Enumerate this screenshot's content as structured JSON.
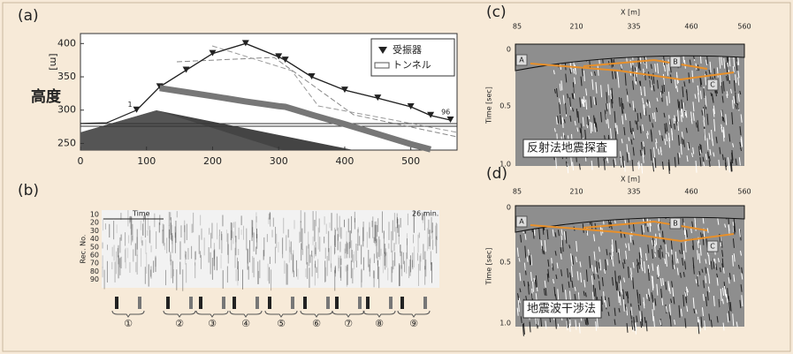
{
  "chart_data": {
    "type": "line",
    "label": "(a)",
    "y_label": "高度",
    "y_unit": "[m]",
    "x": [
      0,
      40,
      85,
      120,
      160,
      200,
      250,
      300,
      310,
      350,
      400,
      450,
      500,
      530,
      560
    ],
    "series": [
      {
        "color": "#222",
        "values": [
          280,
          281,
          300,
          335,
          360,
          385,
          400,
          380,
          375,
          350,
          330,
          318,
          305,
          292,
          285
        ]
      },
      {
        "name": "受振器",
        "color": "#222",
        "marker": "triangle-down",
        "values": [
          null,
          null,
          300,
          335,
          360,
          385,
          400,
          380,
          375,
          350,
          330,
          318,
          305,
          292,
          285
        ]
      },
      {
        "name": "トンネル",
        "color": "#777",
        "values": [
          null,
          null,
          null,
          333,
          327,
          321,
          313,
          306,
          305,
          293,
          279,
          264,
          249,
          241,
          null
        ]
      }
    ],
    "xlim": [
      0,
      570
    ],
    "ylim": [
      240,
      415
    ],
    "xticks": [
      0,
      100,
      200,
      300,
      400,
      500
    ],
    "yticks": [
      250,
      300,
      350,
      400
    ],
    "annotations": [
      "1",
      "96"
    ]
  },
  "panels": [
    {
      "label": "(b)",
      "time": "Time",
      "end": "26 min.",
      "y_label": "Rec. No.",
      "yticks": [
        "10",
        "20",
        "30",
        "40",
        "50",
        "60",
        "70",
        "80",
        "90"
      ],
      "groups": [
        "①",
        "②",
        "③",
        "④",
        "⑤",
        "⑥",
        "⑦",
        "⑧",
        "⑨"
      ]
    },
    {
      "label": "(c)",
      "x_label": "X [m]",
      "xticks": [
        "85",
        "210",
        "335",
        "460",
        "560"
      ],
      "y_label": "Time [sec]",
      "yticks": [
        "0",
        "0.5",
        "1.0"
      ],
      "markers": [
        "A",
        "B",
        "C"
      ],
      "caption": "反射法地震探査"
    },
    {
      "label": "(d)",
      "x_label": "X [m]",
      "xticks": [
        "85",
        "210",
        "335",
        "460",
        "560"
      ],
      "y_label": "Time [sec]",
      "yticks": [
        "0",
        "0.5",
        "1.0"
      ],
      "markers": [
        "A",
        "B",
        "C"
      ],
      "caption": "地震波干渉法"
    }
  ]
}
